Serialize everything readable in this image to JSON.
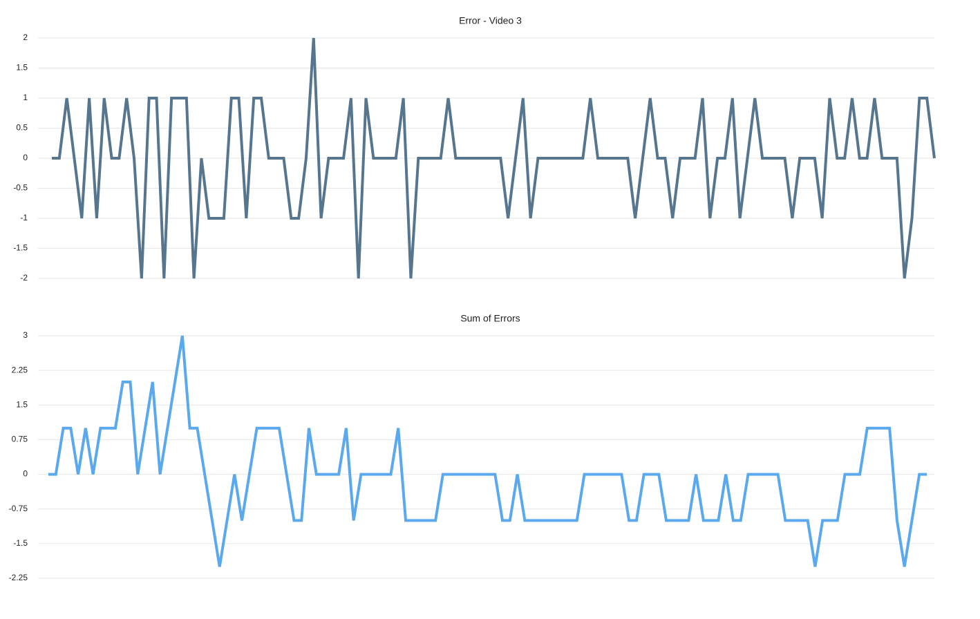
{
  "chart_data": [
    {
      "type": "line",
      "title": "Error - Video 3",
      "color": "#56758f",
      "ylim": [
        -2,
        2
      ],
      "yticks": [
        2,
        1.5,
        1,
        0.5,
        0,
        -0.5,
        -1,
        -1.5,
        -2
      ],
      "grid": true,
      "values": [
        0,
        0,
        1,
        0,
        -1,
        1,
        -1,
        1,
        0,
        0,
        1,
        0,
        -2,
        1,
        1,
        -2,
        1,
        1,
        1,
        -2,
        0,
        -1,
        -1,
        -1,
        1,
        1,
        -1,
        1,
        1,
        0,
        0,
        0,
        -1,
        -1,
        0,
        2,
        -1,
        0,
        0,
        0,
        1,
        -2,
        1,
        0,
        0,
        0,
        0,
        1,
        -2,
        0,
        0,
        0,
        0,
        1,
        0,
        0,
        0,
        0,
        0,
        0,
        0,
        -1,
        0,
        1,
        -1,
        0,
        0,
        0,
        0,
        0,
        0,
        0,
        1,
        0,
        0,
        0,
        0,
        0,
        -1,
        0,
        1,
        0,
        0,
        -1,
        0,
        0,
        0,
        1,
        -1,
        0,
        0,
        1,
        -1,
        0,
        1,
        0,
        0,
        0,
        0,
        -1,
        0,
        0,
        0,
        -1,
        1,
        0,
        0,
        1,
        0,
        0,
        1,
        0,
        0,
        0,
        -2,
        -1,
        1,
        1,
        0
      ]
    },
    {
      "type": "line",
      "title": "Sum of Errors",
      "color": "#5aa9ee",
      "ylim": [
        -2.25,
        3
      ],
      "yticks": [
        3,
        2.25,
        1.5,
        0.75,
        0,
        -0.75,
        -1.5,
        -2.25
      ],
      "grid": true,
      "values": [
        0,
        0,
        1,
        1,
        0,
        1,
        0,
        1,
        1,
        1,
        2,
        2,
        0,
        1,
        2,
        0,
        1,
        2,
        3,
        1,
        1,
        0,
        -1,
        -2,
        -1,
        0,
        -1,
        0,
        1,
        1,
        1,
        1,
        0,
        -1,
        -1,
        1,
        0,
        0,
        0,
        0,
        1,
        -1,
        0,
        0,
        0,
        0,
        0,
        1,
        -1,
        -1,
        -1,
        -1,
        -1,
        0,
        0,
        0,
        0,
        0,
        0,
        0,
        0,
        -1,
        -1,
        0,
        -1,
        -1,
        -1,
        -1,
        -1,
        -1,
        -1,
        -1,
        0,
        0,
        0,
        0,
        0,
        0,
        -1,
        -1,
        0,
        0,
        0,
        -1,
        -1,
        -1,
        -1,
        0,
        -1,
        -1,
        -1,
        0,
        -1,
        -1,
        0,
        0,
        0,
        0,
        0,
        -1,
        -1,
        -1,
        -1,
        -2,
        -1,
        -1,
        -1,
        0,
        0,
        0,
        1,
        1,
        1,
        1,
        -1,
        -2,
        -1,
        0,
        0
      ]
    }
  ]
}
